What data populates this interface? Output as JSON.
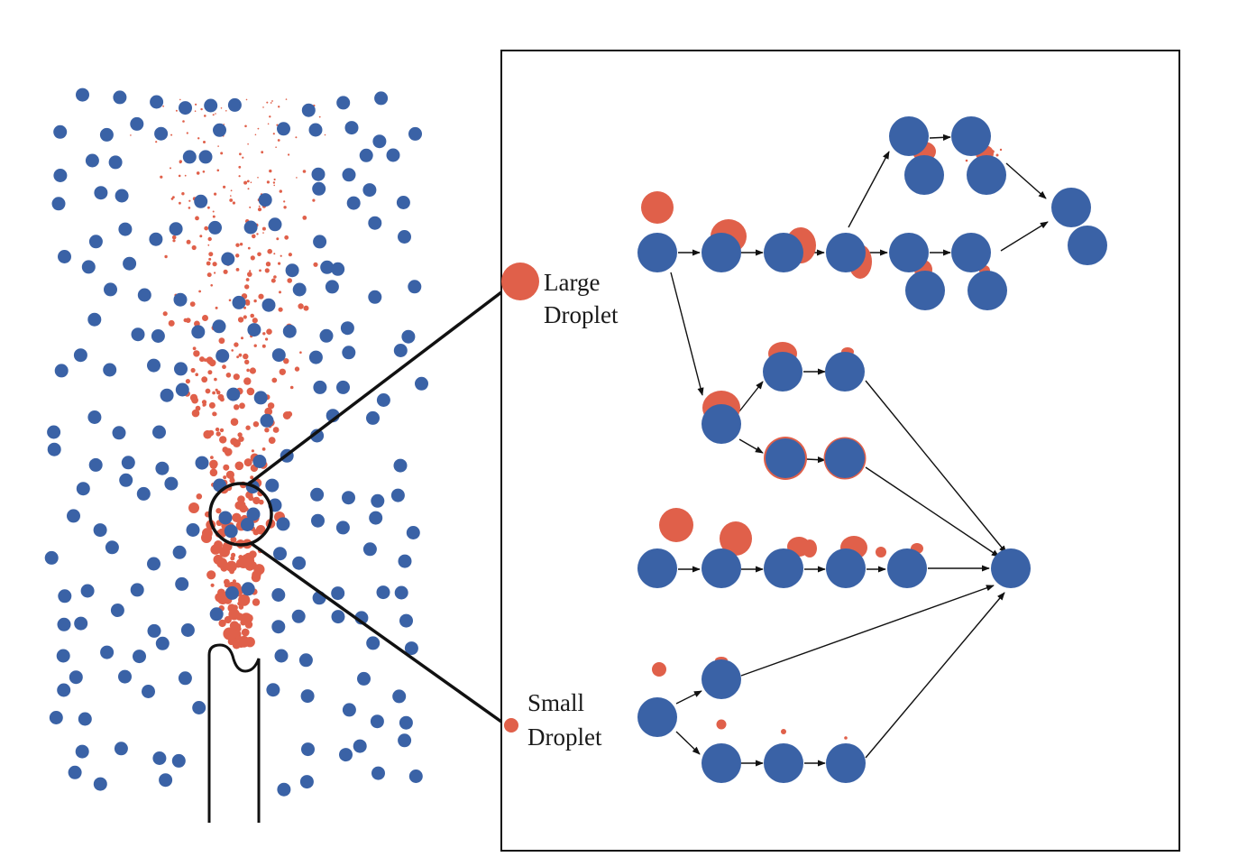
{
  "colors": {
    "particle": "#3a62a6",
    "droplet": "#e0604a",
    "line": "#111111",
    "background": "#ffffff"
  },
  "legend": {
    "large_line1": "Large",
    "large_line2": "Droplet",
    "small_line1": "Small",
    "small_line2": "Droplet"
  },
  "panels": {
    "left": "spray-field",
    "right": "collision-pathways"
  }
}
